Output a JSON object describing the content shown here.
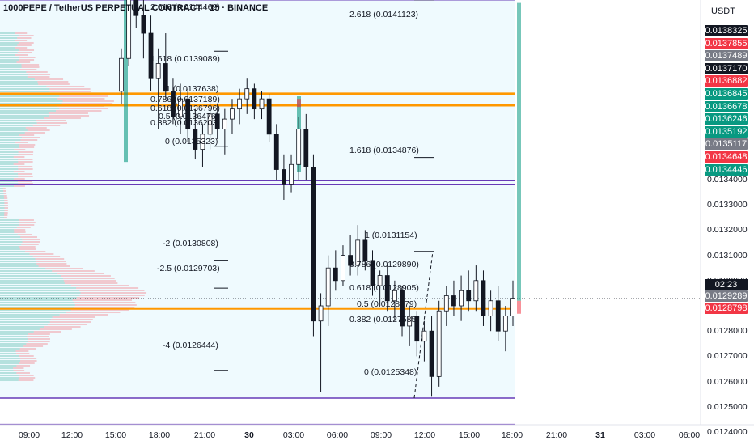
{
  "header": {
    "symbol_title": "1000PEPE / TetherUS PERPETUAL CONTRACT · 15 · BINANCE"
  },
  "price_axis": {
    "currency": "USDT",
    "ticks": [
      "0.0134000",
      "0.0133000",
      "0.0132000",
      "0.0131000",
      "0.0130000",
      "0.0128000",
      "0.0127000",
      "0.0126000",
      "0.0125000",
      "0.0124000"
    ],
    "countdown": "02:23",
    "tags": [
      {
        "text": "0.0138325",
        "bg": "#131722"
      },
      {
        "text": "0.0137855",
        "bg": "#f23645"
      },
      {
        "text": "0.0137489",
        "bg": "#787b86"
      },
      {
        "text": "0.0137170",
        "bg": "#131722"
      },
      {
        "text": "0.0136882",
        "bg": "#f23645"
      },
      {
        "text": "0.0136845",
        "bg": "#089981"
      },
      {
        "text": "0.0136678",
        "bg": "#089981"
      },
      {
        "text": "0.0136246",
        "bg": "#089981"
      },
      {
        "text": "0.0135192",
        "bg": "#089981"
      },
      {
        "text": "0.0135117",
        "bg": "#787b86"
      },
      {
        "text": "0.0134648",
        "bg": "#f23645"
      },
      {
        "text": "0.0134446",
        "bg": "#089981"
      },
      {
        "text": "0.0129289",
        "bg": "#787b86"
      },
      {
        "text": "0.0128798",
        "bg": "#f23645"
      }
    ]
  },
  "time_axis": [
    "09:00",
    "12:00",
    "15:00",
    "18:00",
    "21:00",
    "30",
    "03:00",
    "06:00",
    "09:00",
    "12:00",
    "15:00",
    "18:00",
    "21:00",
    "31",
    "03:00",
    "06:00"
  ],
  "fib_labels": {
    "upper_left": [
      "2.618 (0.0144469)",
      "1.618 (0.0139089)",
      "1 (0.0137638)",
      "0.786 (0.0137189)",
      "0.618 (0.0136796)",
      "0.5 (0.0136476)",
      "0.382 (0.0136203)",
      "0 (0.0135323)"
    ],
    "upper_right": [
      "2.618 (0.0141123)",
      "1.618 (0.0134876)"
    ],
    "lower_left": [
      "-2 (0.0130808)",
      "-2.5 (0.0129703)",
      "-4 (0.0126444)"
    ],
    "lower_right": [
      "1 (0.0131154)",
      "0.786 (0.0129890)",
      "0.618 (0.0128905)",
      "0.5 (0.0128279)",
      "0.382 (0.0127585)",
      "0 (0.0125348)"
    ]
  },
  "colors": {
    "bull": "#089981",
    "bear": "#f23645",
    "fib_purple": "#673ab7",
    "fib_orange": "#ff9800",
    "zone": "#e1f5fe"
  },
  "chart_data": {
    "type": "candlestick",
    "title": "1000PEPE / TetherUS PERPETUAL CONTRACT · 15 · BINANCE",
    "y_unit": "USDT",
    "ylim": [
      0.01238,
      0.01442
    ],
    "x_ticks": [
      "09:00",
      "12:00",
      "15:00",
      "18:00",
      "21:00",
      "30",
      "03:00",
      "06:00",
      "09:00",
      "12:00",
      "15:00",
      "18:00",
      "21:00",
      "31",
      "03:00",
      "06:00"
    ],
    "last_price": 0.0129289,
    "candles_ohlc": [
      [
        0.01375,
        0.01392,
        0.0137,
        0.01388
      ],
      [
        0.01388,
        0.0144,
        0.01385,
        0.0143
      ],
      [
        0.0143,
        0.01442,
        0.014,
        0.01405
      ],
      [
        0.01405,
        0.0142,
        0.01388,
        0.01398
      ],
      [
        0.01398,
        0.01405,
        0.01375,
        0.0138
      ],
      [
        0.0138,
        0.01392,
        0.0136,
        0.01386
      ],
      [
        0.01386,
        0.01398,
        0.01372,
        0.01375
      ],
      [
        0.01375,
        0.0138,
        0.01362,
        0.01365
      ],
      [
        0.01365,
        0.01378,
        0.01358,
        0.01372
      ],
      [
        0.01372,
        0.01376,
        0.01355,
        0.0136
      ],
      [
        0.0136,
        0.01368,
        0.01348,
        0.01352
      ],
      [
        0.01352,
        0.01362,
        0.01345,
        0.01358
      ],
      [
        0.01358,
        0.01372,
        0.01352,
        0.01366
      ],
      [
        0.01366,
        0.0137,
        0.01356,
        0.0136
      ],
      [
        0.0136,
        0.01368,
        0.0135,
        0.01364
      ],
      [
        0.01364,
        0.01372,
        0.01358,
        0.01368
      ],
      [
        0.01368,
        0.01376,
        0.01362,
        0.01372
      ],
      [
        0.01372,
        0.0138,
        0.01366,
        0.01376
      ],
      [
        0.01376,
        0.01378,
        0.01364,
        0.01368
      ],
      [
        0.01368,
        0.01375,
        0.01364,
        0.01372
      ],
      [
        0.01372,
        0.01374,
        0.01355,
        0.01358
      ],
      [
        0.01358,
        0.01362,
        0.0134,
        0.01344
      ],
      [
        0.01344,
        0.0135,
        0.01332,
        0.01338
      ],
      [
        0.01338,
        0.0135,
        0.01335,
        0.01346
      ],
      [
        0.01346,
        0.01365,
        0.0134,
        0.0136
      ],
      [
        0.0136,
        0.01366,
        0.0134,
        0.01345
      ],
      [
        0.01345,
        0.0135,
        0.01278,
        0.01284
      ],
      [
        0.01284,
        0.01295,
        0.01256,
        0.0129
      ],
      [
        0.0129,
        0.0131,
        0.01282,
        0.01305
      ],
      [
        0.01305,
        0.01312,
        0.01296,
        0.013
      ],
      [
        0.013,
        0.01314,
        0.01298,
        0.0131
      ],
      [
        0.0131,
        0.01318,
        0.01302,
        0.01306
      ],
      [
        0.01306,
        0.01322,
        0.01302,
        0.01316
      ],
      [
        0.01316,
        0.0132,
        0.01304,
        0.01308
      ],
      [
        0.01308,
        0.01312,
        0.01294,
        0.01298
      ],
      [
        0.01298,
        0.01304,
        0.0129,
        0.01302
      ],
      [
        0.01302,
        0.01306,
        0.01288,
        0.01292
      ],
      [
        0.01292,
        0.013,
        0.01284,
        0.01296
      ],
      [
        0.01296,
        0.01298,
        0.01278,
        0.01282
      ],
      [
        0.01282,
        0.0129,
        0.01274,
        0.01286
      ],
      [
        0.01286,
        0.01288,
        0.0127,
        0.01276
      ],
      [
        0.01276,
        0.01284,
        0.01268,
        0.0128
      ],
      [
        0.0128,
        0.01286,
        0.01254,
        0.01262
      ],
      [
        0.01262,
        0.01292,
        0.01258,
        0.01288
      ],
      [
        0.01288,
        0.01298,
        0.01282,
        0.01294
      ],
      [
        0.01294,
        0.013,
        0.01286,
        0.0129
      ],
      [
        0.0129,
        0.01302,
        0.01284,
        0.01296
      ],
      [
        0.01296,
        0.01304,
        0.01288,
        0.01292
      ],
      [
        0.01292,
        0.01306,
        0.01288,
        0.013
      ],
      [
        0.013,
        0.01304,
        0.01282,
        0.01286
      ],
      [
        0.01286,
        0.01296,
        0.0128,
        0.01292
      ],
      [
        0.01292,
        0.01298,
        0.01276,
        0.0128
      ],
      [
        0.0128,
        0.0129,
        0.01272,
        0.01286
      ],
      [
        0.01286,
        0.013,
        0.01282,
        0.01293
      ]
    ]
  }
}
